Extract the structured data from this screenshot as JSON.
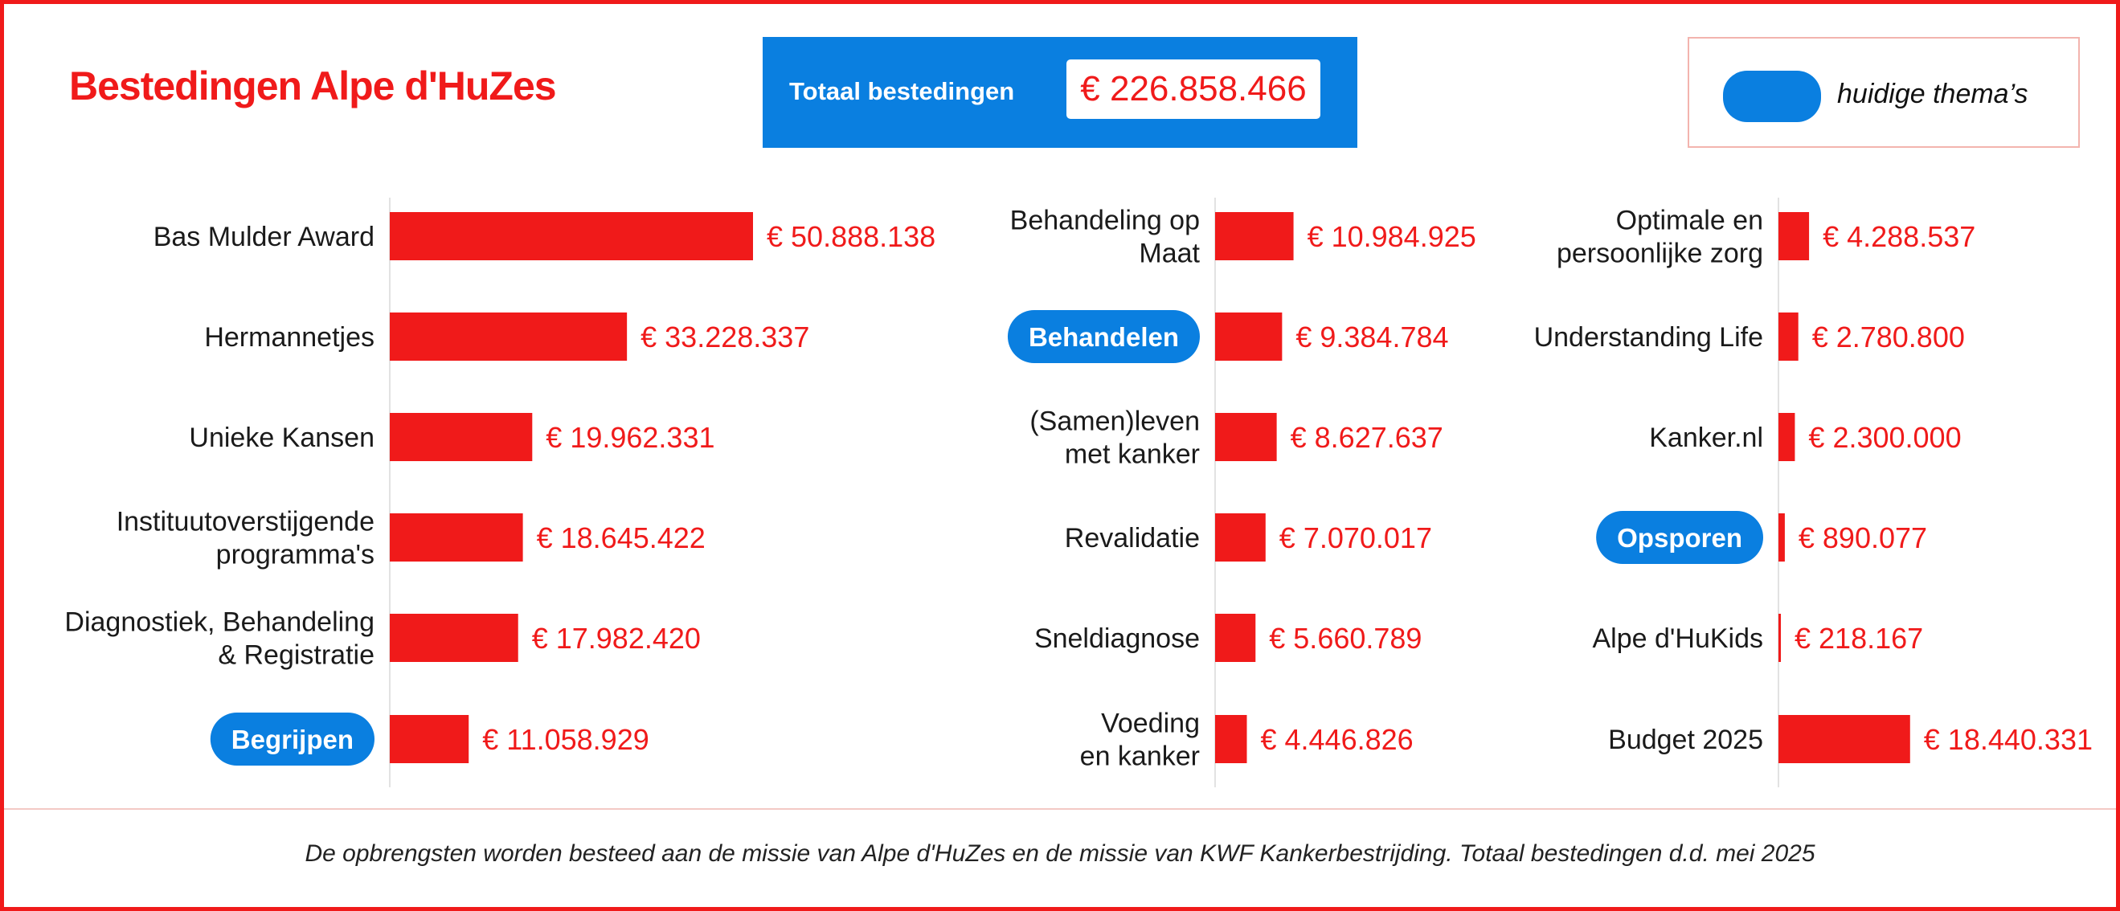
{
  "header": {
    "title": "Bestedingen Alpe d'HuZes",
    "total_label": "Totaal bestedingen",
    "total_value": "€ 226.858.466"
  },
  "legend": {
    "label": "huidige thema’s",
    "color": "#0a7fe0"
  },
  "colors": {
    "accent": "#f01a1a",
    "theme_blue": "#0a7fe0"
  },
  "footnote": "De opbrengsten worden besteed aan de missie van Alpe d'HuZes en de missie van KWF Kankerbestrijding. Totaal bestedingen d.d. mei 2025",
  "chart_data": [
    {
      "type": "bar",
      "orientation": "horizontal",
      "xlim": [
        0,
        50888138
      ],
      "series": [
        {
          "items": [
            {
              "label": [
                "Bas Mulder Award"
              ],
              "value": 50888138,
              "value_label": "€ 50.888.138"
            },
            {
              "label": [
                "Hermannetjes"
              ],
              "value": 33228337,
              "value_label": "€ 33.228.337"
            },
            {
              "label": [
                "Unieke Kansen"
              ],
              "value": 19962331,
              "value_label": "€ 19.962.331"
            },
            {
              "label": [
                "Instituutoverstijgende",
                "programma's"
              ],
              "value": 18645422,
              "value_label": "€ 18.645.422"
            },
            {
              "label": [
                "Diagnostiek, Behandeling",
                "& Registratie"
              ],
              "value": 17982420,
              "value_label": "€ 17.982.420"
            },
            {
              "label": [
                "Begrijpen"
              ],
              "value": 11058929,
              "value_label": "€ 11.058.929",
              "theme": true
            }
          ]
        }
      ]
    },
    {
      "type": "bar",
      "orientation": "horizontal",
      "xlim": [
        0,
        50888138
      ],
      "series": [
        {
          "items": [
            {
              "label": [
                "Behandeling op",
                "Maat"
              ],
              "value": 10984925,
              "value_label": "€ 10.984.925"
            },
            {
              "label": [
                "Behandelen"
              ],
              "value": 9384784,
              "value_label": "€ 9.384.784",
              "theme": true
            },
            {
              "label": [
                "(Samen)leven",
                "met kanker"
              ],
              "value": 8627637,
              "value_label": "€ 8.627.637"
            },
            {
              "label": [
                "Revalidatie"
              ],
              "value": 7070017,
              "value_label": "€ 7.070.017"
            },
            {
              "label": [
                "Sneldiagnose"
              ],
              "value": 5660789,
              "value_label": "€ 5.660.789"
            },
            {
              "label": [
                "Voeding",
                "en kanker"
              ],
              "value": 4446826,
              "value_label": "€ 4.446.826"
            }
          ]
        }
      ]
    },
    {
      "type": "bar",
      "orientation": "horizontal",
      "xlim": [
        0,
        50888138
      ],
      "series": [
        {
          "items": [
            {
              "label": [
                "Optimale en",
                "persoonlijke zorg"
              ],
              "value": 4288537,
              "value_label": "€ 4.288.537"
            },
            {
              "label": [
                "Understanding Life"
              ],
              "value": 2780800,
              "value_label": "€ 2.780.800"
            },
            {
              "label": [
                "Kanker.nl"
              ],
              "value": 2300000,
              "value_label": "€ 2.300.000"
            },
            {
              "label": [
                "Opsporen"
              ],
              "value": 890077,
              "value_label": "€ 890.077",
              "theme": true
            },
            {
              "label": [
                "Alpe d'HuKids"
              ],
              "value": 218167,
              "value_label": "€ 218.167"
            },
            {
              "label": [
                "Budget 2025"
              ],
              "value": 18440331,
              "value_label": "€ 18.440.331"
            }
          ]
        }
      ]
    }
  ]
}
